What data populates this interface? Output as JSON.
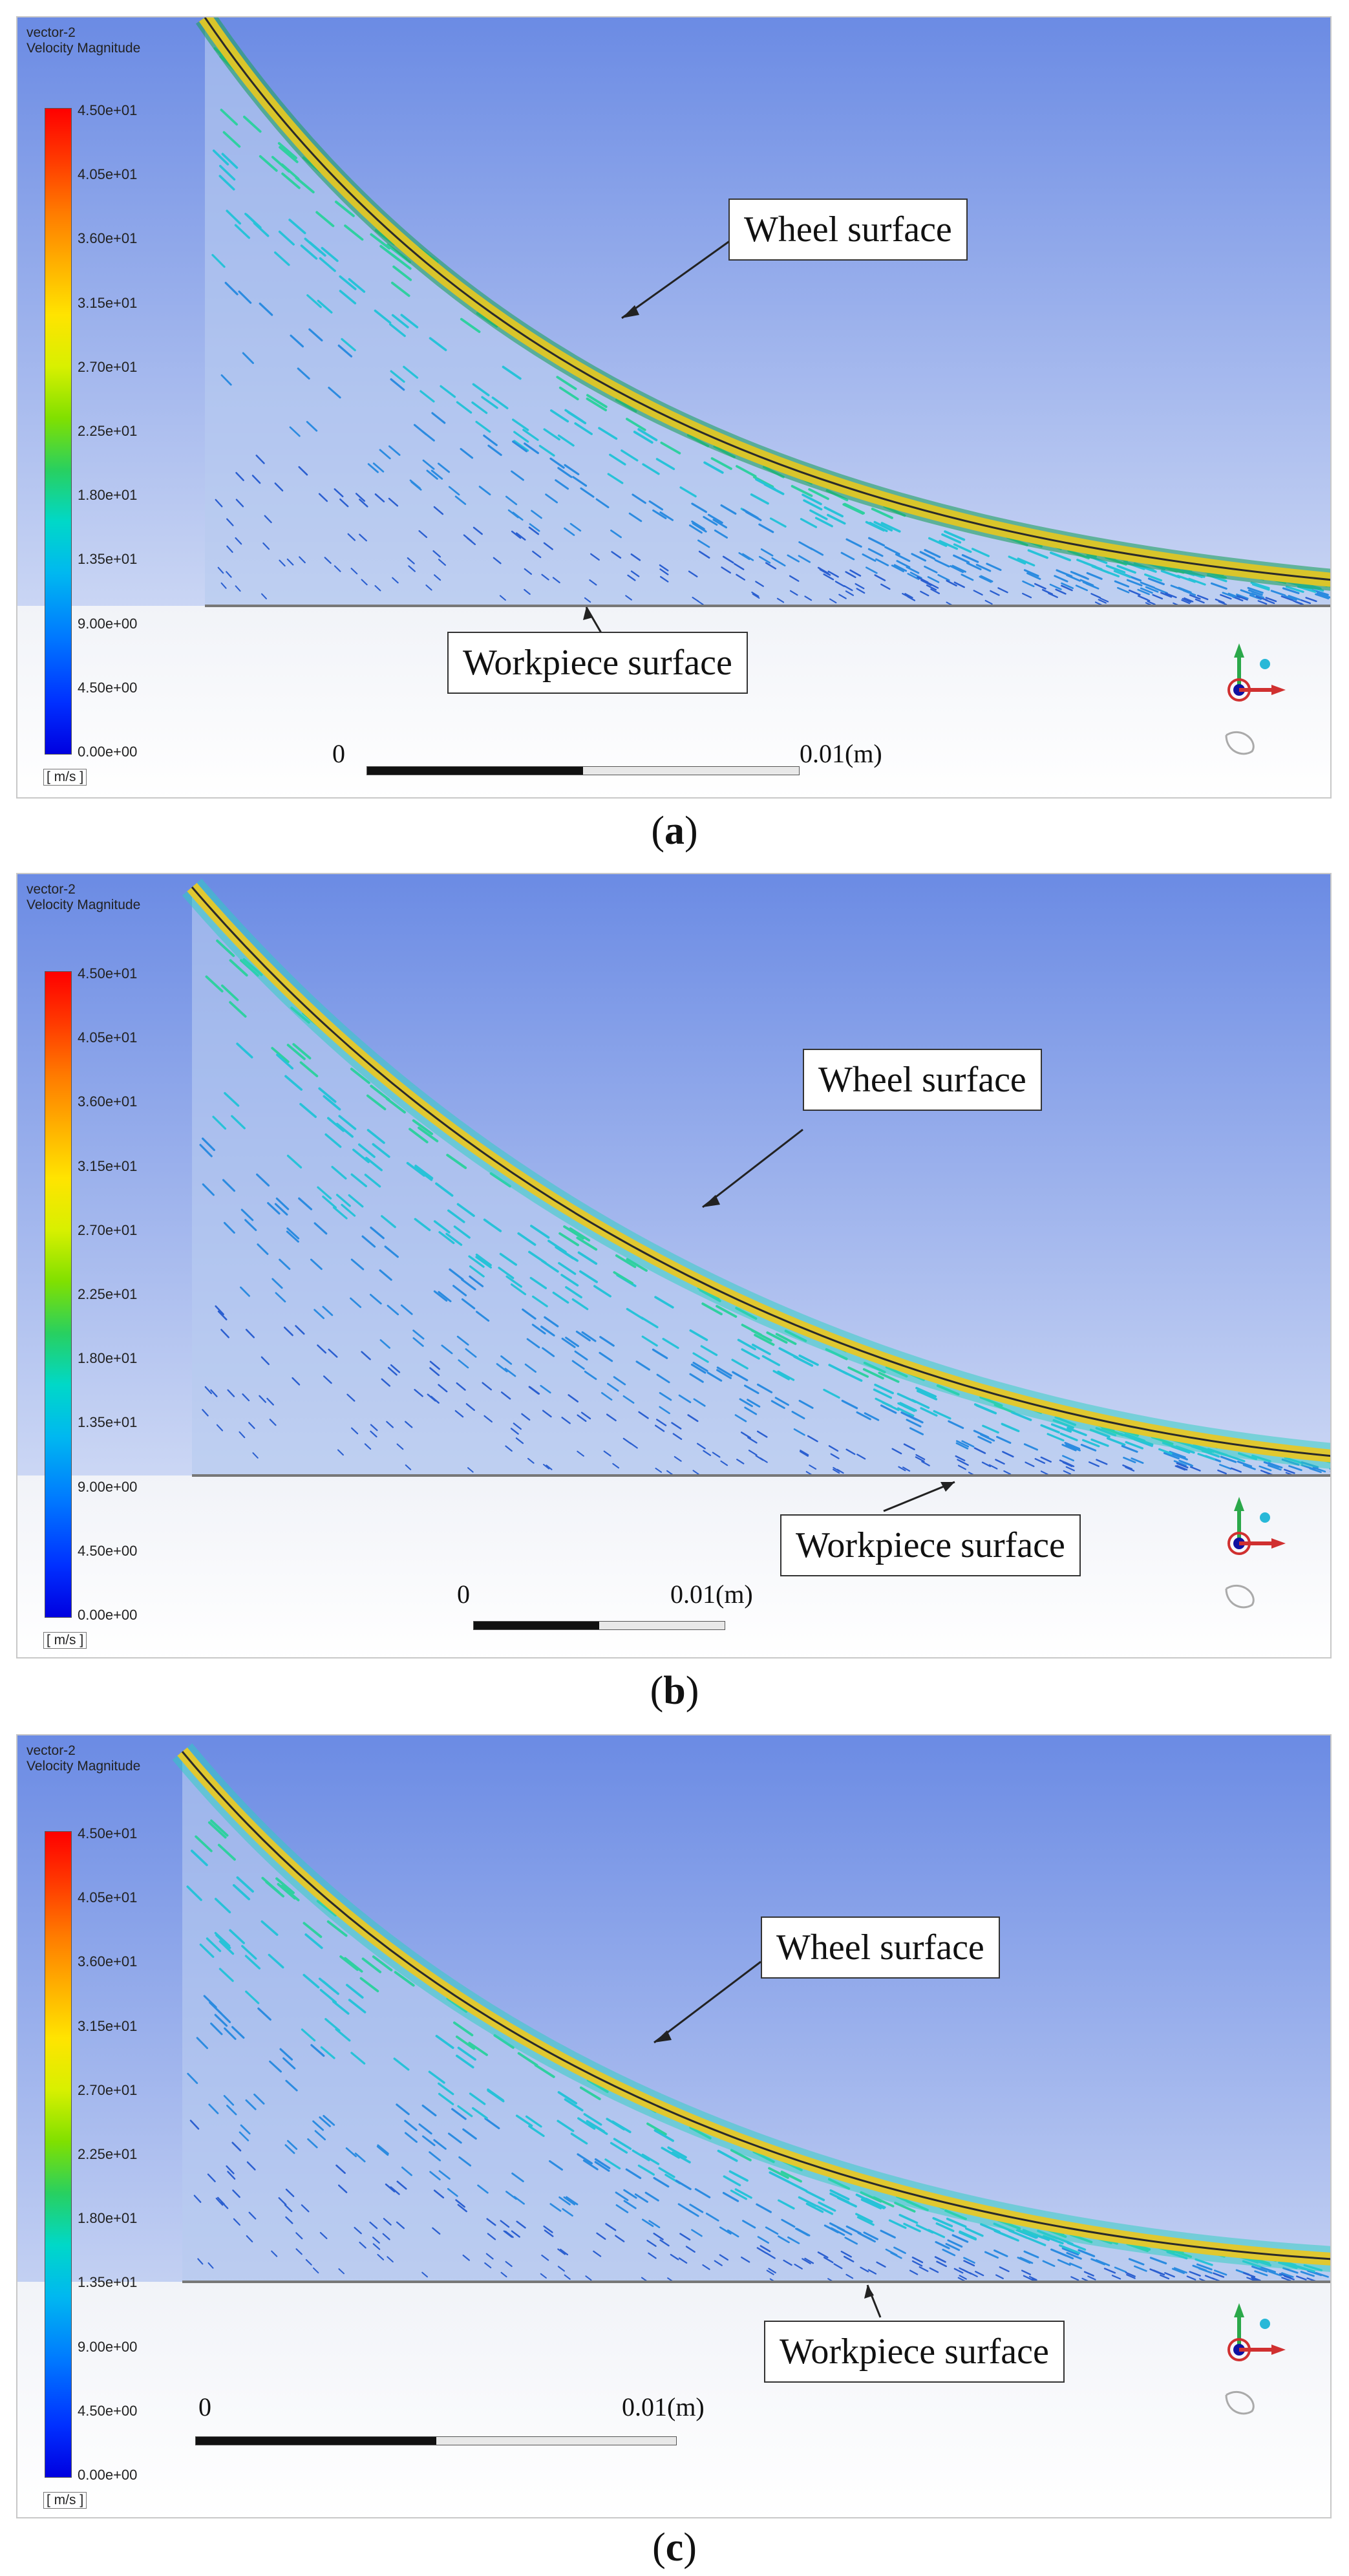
{
  "panels": [
    {
      "id": "a",
      "legend_title": [
        "vector-2",
        "Velocity Magnitude"
      ],
      "wheel_label": "Wheel surface",
      "workpiece_label": "Workpiece surface",
      "scale_start": "0",
      "scale_end": "0.01(m)",
      "caption_letter": "a"
    },
    {
      "id": "b",
      "legend_title": [
        "vector-2",
        "Velocity Magnitude"
      ],
      "wheel_label": "Wheel surface",
      "workpiece_label": "Workpiece surface",
      "scale_start": "0",
      "scale_end": "0.01(m)",
      "caption_letter": "b"
    },
    {
      "id": "c",
      "legend_title": [
        "vector-2",
        "Velocity Magnitude"
      ],
      "wheel_label": "Wheel surface",
      "workpiece_label": "Workpiece surface",
      "scale_start": "0",
      "scale_end": "0.01(m)",
      "caption_letter": "c"
    }
  ],
  "colorbar": {
    "ticks": [
      "4.50e+01",
      "4.05e+01",
      "3.60e+01",
      "3.15e+01",
      "2.70e+01",
      "2.25e+01",
      "1.80e+01",
      "1.35e+01",
      "9.00e+00",
      "4.50e+00",
      "0.00e+00"
    ],
    "units": "[ m/s ]"
  },
  "colors": {
    "sky_top": "#6f8fe6",
    "sky_bottom": "#e6ecf8",
    "wheel_band": "#d6c830",
    "vector_blue": "#2b6fd6",
    "vector_cyan": "#27c2d8"
  }
}
